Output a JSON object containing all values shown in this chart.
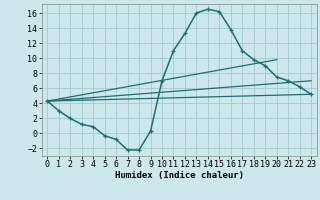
{
  "xlabel": "Humidex (Indice chaleur)",
  "background_color": "#cce8ec",
  "grid_color": "#aacdd4",
  "line_color": "#1a7070",
  "xlim": [
    -0.5,
    23.5
  ],
  "ylim": [
    -3.0,
    17.2
  ],
  "xticks": [
    0,
    1,
    2,
    3,
    4,
    5,
    6,
    7,
    8,
    9,
    10,
    11,
    12,
    13,
    14,
    15,
    16,
    17,
    18,
    19,
    20,
    21,
    22,
    23
  ],
  "yticks": [
    -2,
    0,
    2,
    4,
    6,
    8,
    10,
    12,
    14,
    16
  ],
  "line1_x": [
    0,
    1,
    2,
    3,
    4,
    5,
    6,
    7,
    8,
    9,
    10,
    11,
    12,
    13,
    14,
    15,
    16,
    17,
    18,
    19,
    20,
    21,
    22,
    23
  ],
  "line1_y": [
    4.3,
    3.0,
    2.0,
    1.2,
    0.9,
    -0.3,
    -0.8,
    -2.2,
    -2.2,
    0.3,
    7.0,
    11.0,
    13.3,
    16.0,
    16.5,
    16.2,
    13.8,
    11.0,
    9.8,
    9.0,
    7.5,
    7.0,
    6.2,
    5.2
  ],
  "line2_x": [
    0,
    20
  ],
  "line2_y": [
    4.3,
    9.8
  ],
  "line3_x": [
    0,
    23
  ],
  "line3_y": [
    4.3,
    7.0
  ],
  "line4_x": [
    0,
    23
  ],
  "line4_y": [
    4.3,
    5.2
  ]
}
